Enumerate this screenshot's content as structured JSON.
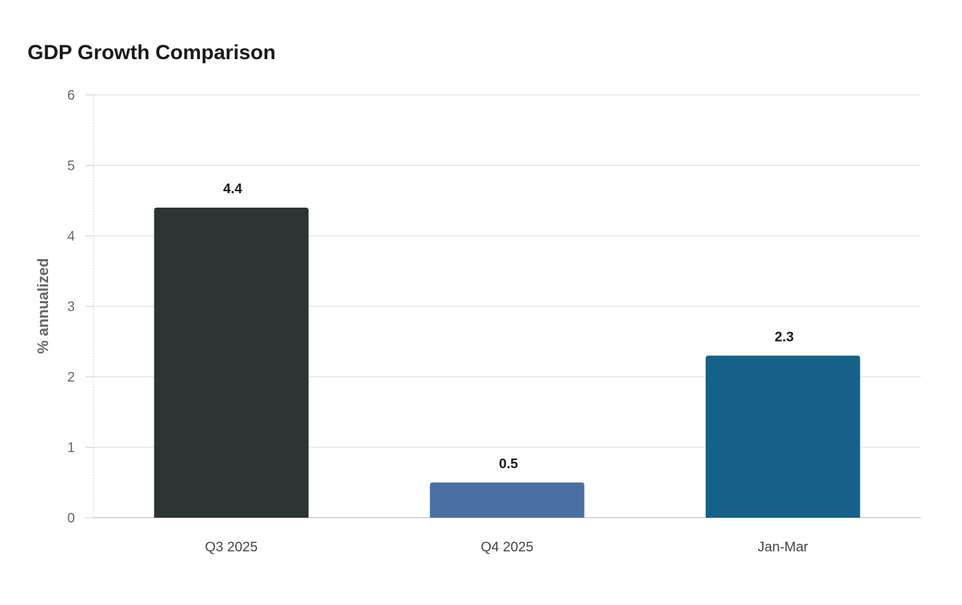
{
  "chart_data": {
    "type": "bar",
    "title": "GDP Growth Comparison",
    "xlabel": "",
    "ylabel": "% annualized",
    "categories": [
      "Q3 2025",
      "Q4 2025",
      "Jan-Mar"
    ],
    "values": [
      4.4,
      0.5,
      2.3
    ],
    "data_labels": [
      "4.4",
      "0.5",
      "2.3"
    ],
    "colors": [
      "#2e3436",
      "#4a6fa5",
      "#16618a"
    ],
    "ylim": [
      0,
      6
    ],
    "yticks": [
      0,
      1,
      2,
      3,
      4,
      5,
      6
    ],
    "grid": true,
    "legend": "none"
  }
}
